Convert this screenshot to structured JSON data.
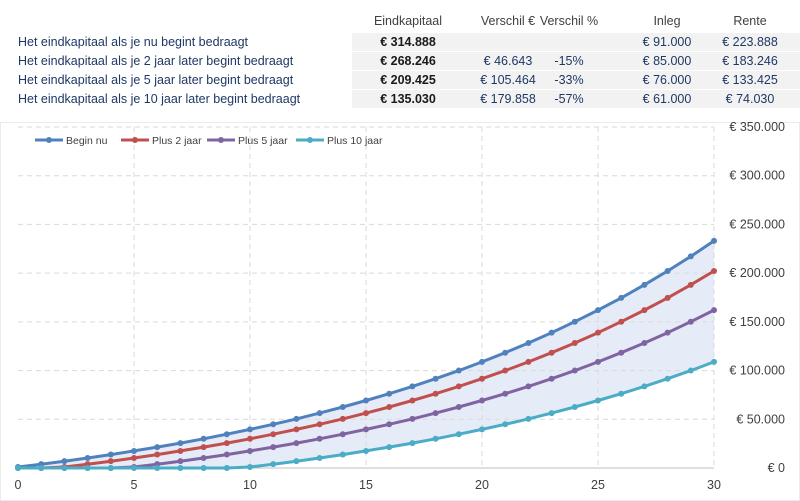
{
  "summary": {
    "headers": [
      "Eindkapitaal",
      "Verschil €",
      "Verschil %",
      "Inleg",
      "Rente"
    ],
    "rows": [
      {
        "label": "Het eindkapitaal als je nu begint bedraagt",
        "eindkapitaal": "€ 314.888",
        "verschil_eur": "",
        "verschil_pct": "",
        "inleg": "€ 91.000",
        "rente": "€ 223.888"
      },
      {
        "label": "Het eindkapitaal als je 2 jaar later begint bedraagt",
        "eindkapitaal": "€ 268.246",
        "verschil_eur": "€ 46.643",
        "verschil_pct": "-15%",
        "inleg": "€ 85.000",
        "rente": "€ 183.246"
      },
      {
        "label": "Het eindkapitaal als je 5 jaar later begint bedraagt",
        "eindkapitaal": "€ 209.425",
        "verschil_eur": "€ 105.464",
        "verschil_pct": "-33%",
        "inleg": "€ 76.000",
        "rente": "€ 133.425"
      },
      {
        "label": "Het eindkapitaal als je 10 jaar later begint bedraagt",
        "eindkapitaal": "€ 135.030",
        "verschil_eur": "€ 179.858",
        "verschil_pct": "-57%",
        "inleg": "€ 61.000",
        "rente": "€ 74.030"
      }
    ]
  },
  "chart_data": {
    "type": "line",
    "title": "",
    "xlabel": "",
    "ylabel": "",
    "x": [
      0,
      1,
      2,
      3,
      4,
      5,
      6,
      7,
      8,
      9,
      10,
      11,
      12,
      13,
      14,
      15,
      16,
      17,
      18,
      19,
      20,
      21,
      22,
      23,
      24,
      25,
      26,
      27,
      28,
      29,
      30
    ],
    "xlim": [
      0,
      30
    ],
    "ylim": [
      0,
      350000
    ],
    "x_ticks": [
      0,
      5,
      10,
      15,
      20,
      25,
      30
    ],
    "x_tick_labels": [
      "0",
      "5",
      "10",
      "15",
      "20",
      "25",
      "30"
    ],
    "y_ticks": [
      0,
      50000,
      100000,
      150000,
      200000,
      250000,
      300000,
      350000
    ],
    "y_tick_labels": [
      "€ 0",
      "€ 50.000",
      "€ 100.000",
      "€ 150.000",
      "€ 200.000",
      "€ 250.000",
      "€ 300.000",
      "€ 350.000"
    ],
    "grid": true,
    "legend_position": "top-left",
    "band_between": [
      "Begin nu",
      "Plus 10 jaar"
    ],
    "band_color": "#E6ECF7",
    "series": [
      {
        "name": "Begin nu",
        "color": "#4F81BD",
        "values": [
          1000,
          3920,
          7020,
          10310,
          13800,
          17500,
          21420,
          25580,
          29990,
          34660,
          39620,
          44870,
          50440,
          56340,
          62600,
          69240,
          76270,
          83730,
          91630,
          100010,
          108900,
          118320,
          128300,
          138890,
          150120,
          162020,
          174630,
          188000,
          202180,
          217210,
          233140
        ]
      },
      {
        "name": "Plus 2 jaar",
        "color": "#C0504D",
        "values": [
          0,
          0,
          1000,
          3920,
          7020,
          10310,
          13800,
          17500,
          21420,
          25580,
          29990,
          34660,
          39620,
          44870,
          50440,
          56340,
          62600,
          69240,
          76270,
          83730,
          91630,
          100010,
          108900,
          118320,
          128300,
          138890,
          150120,
          162020,
          174630,
          188000,
          202180
        ]
      },
      {
        "name": "Plus 5 jaar",
        "color": "#8064A2",
        "values": [
          0,
          0,
          0,
          0,
          0,
          1000,
          3920,
          7020,
          10310,
          13800,
          17500,
          21420,
          25580,
          29990,
          34660,
          39620,
          44870,
          50440,
          56340,
          62600,
          69240,
          76270,
          83730,
          91630,
          100010,
          108900,
          118320,
          128300,
          138890,
          150120,
          162020
        ]
      },
      {
        "name": "Plus 10 jaar",
        "color": "#4BACC6",
        "values": [
          0,
          0,
          0,
          0,
          0,
          0,
          0,
          0,
          0,
          0,
          1000,
          3920,
          7020,
          10310,
          13800,
          17500,
          21420,
          25580,
          29990,
          34660,
          39620,
          44870,
          50440,
          56340,
          62600,
          69240,
          76270,
          83730,
          91630,
          100010,
          108900
        ]
      }
    ]
  }
}
